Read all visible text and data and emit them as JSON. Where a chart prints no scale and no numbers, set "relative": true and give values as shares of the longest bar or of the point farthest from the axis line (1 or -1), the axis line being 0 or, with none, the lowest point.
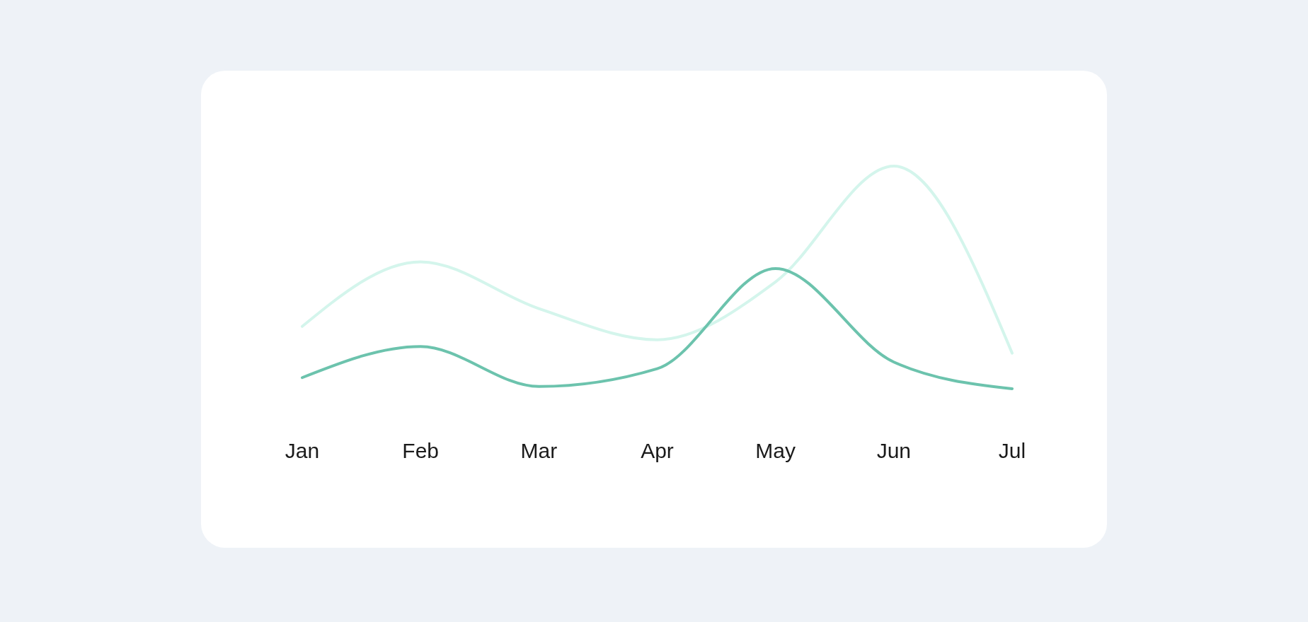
{
  "chart_data": {
    "type": "line",
    "relative": true,
    "categories": [
      "Jan",
      "Feb",
      "Mar",
      "Apr",
      "May",
      "Jun",
      "Jul"
    ],
    "series": [
      {
        "color": "#d4f5ec",
        "values": [
          0.28,
          0.57,
          0.36,
          0.22,
          0.48,
          1,
          0.16
        ]
      },
      {
        "color": "#6cc3ad",
        "values": [
          0.05,
          0.19,
          0.01,
          0.09,
          0.54,
          0.12,
          0
        ]
      }
    ],
    "marker": "none",
    "line_style": "solid"
  }
}
